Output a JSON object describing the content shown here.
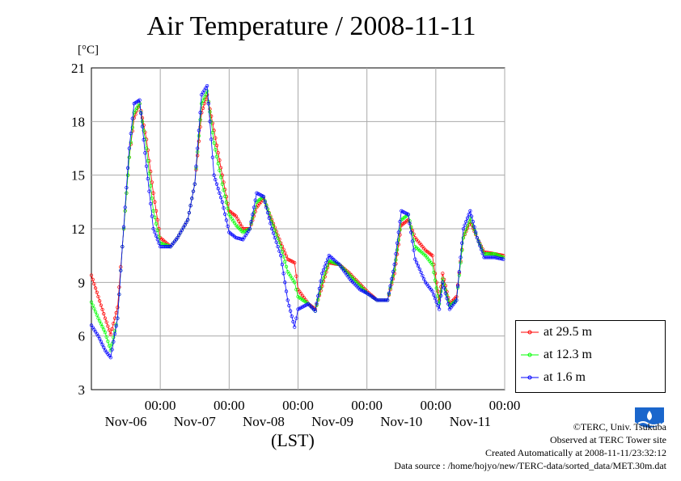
{
  "chart_data": {
    "type": "line",
    "title": "Air Temperature / 2008-11-11",
    "ylabel": "[°C]",
    "xlabel": "(LST)",
    "ylim": [
      3,
      21
    ],
    "yticks": [
      3,
      6,
      9,
      12,
      15,
      18,
      21
    ],
    "x_unit": "day (0 = Nov-06 00:00)",
    "xlim": [
      -1.0,
      5.0
    ],
    "xticks": [
      {
        "x": 0,
        "time": "00:00",
        "date": "Nov-06"
      },
      {
        "x": 1,
        "time": "00:00",
        "date": "Nov-07"
      },
      {
        "x": 2,
        "time": "00:00",
        "date": "Nov-08"
      },
      {
        "x": 3,
        "time": "00:00",
        "date": "Nov-09"
      },
      {
        "x": 4,
        "time": "00:00",
        "date": "Nov-10"
      },
      {
        "x": 5,
        "time": "00:00",
        "date": "Nov-11"
      }
    ],
    "grid": true,
    "legend_position": "right-bottom",
    "series": [
      {
        "name": "at 29.5 m",
        "color": "#ff0000",
        "points": [
          [
            -1.0,
            9.4
          ],
          [
            -0.9,
            8.2
          ],
          [
            -0.8,
            7.0
          ],
          [
            -0.72,
            6.1
          ],
          [
            -0.62,
            7.6
          ],
          [
            -0.55,
            11.0
          ],
          [
            -0.45,
            16.0
          ],
          [
            -0.38,
            18.2
          ],
          [
            -0.3,
            19.0
          ],
          [
            -0.2,
            17.0
          ],
          [
            -0.1,
            14.0
          ],
          [
            0.0,
            11.5
          ],
          [
            0.15,
            11.0
          ],
          [
            0.25,
            11.5
          ],
          [
            0.4,
            12.5
          ],
          [
            0.5,
            14.5
          ],
          [
            0.6,
            18.5
          ],
          [
            0.68,
            19.5
          ],
          [
            0.78,
            17.5
          ],
          [
            0.9,
            15.0
          ],
          [
            1.0,
            13.0
          ],
          [
            1.1,
            12.7
          ],
          [
            1.2,
            12.0
          ],
          [
            1.3,
            12.0
          ],
          [
            1.4,
            13.2
          ],
          [
            1.5,
            13.7
          ],
          [
            1.62,
            12.5
          ],
          [
            1.75,
            11.2
          ],
          [
            1.85,
            10.3
          ],
          [
            1.95,
            10.1
          ],
          [
            2.0,
            8.6
          ],
          [
            2.15,
            7.8
          ],
          [
            2.25,
            7.5
          ],
          [
            2.35,
            8.8
          ],
          [
            2.45,
            10.1
          ],
          [
            2.6,
            10.0
          ],
          [
            2.75,
            9.5
          ],
          [
            2.9,
            8.9
          ],
          [
            3.0,
            8.5
          ],
          [
            3.15,
            8.0
          ],
          [
            3.3,
            8.0
          ],
          [
            3.4,
            9.5
          ],
          [
            3.5,
            12.2
          ],
          [
            3.6,
            12.5
          ],
          [
            3.7,
            11.5
          ],
          [
            3.85,
            10.8
          ],
          [
            3.95,
            10.5
          ],
          [
            4.05,
            8.0
          ],
          [
            4.1,
            9.5
          ],
          [
            4.2,
            7.8
          ],
          [
            4.3,
            8.2
          ],
          [
            4.4,
            11.5
          ],
          [
            4.5,
            12.4
          ],
          [
            4.6,
            11.5
          ],
          [
            4.7,
            10.7
          ],
          [
            4.85,
            10.6
          ],
          [
            4.98,
            10.5
          ]
        ]
      },
      {
        "name": "at 12.3 m",
        "color": "#00ff00",
        "points": [
          [
            -1.0,
            7.9
          ],
          [
            -0.9,
            7.0
          ],
          [
            -0.8,
            6.2
          ],
          [
            -0.72,
            5.2
          ],
          [
            -0.62,
            7.0
          ],
          [
            -0.55,
            11.0
          ],
          [
            -0.45,
            16.0
          ],
          [
            -0.38,
            18.5
          ],
          [
            -0.3,
            19.0
          ],
          [
            -0.2,
            16.5
          ],
          [
            -0.1,
            13.0
          ],
          [
            0.0,
            11.2
          ],
          [
            0.15,
            11.0
          ],
          [
            0.25,
            11.5
          ],
          [
            0.4,
            12.5
          ],
          [
            0.5,
            14.5
          ],
          [
            0.6,
            19.0
          ],
          [
            0.68,
            19.7
          ],
          [
            0.78,
            16.8
          ],
          [
            0.9,
            14.5
          ],
          [
            1.0,
            12.8
          ],
          [
            1.1,
            12.2
          ],
          [
            1.2,
            11.8
          ],
          [
            1.3,
            12.0
          ],
          [
            1.4,
            13.5
          ],
          [
            1.5,
            13.8
          ],
          [
            1.62,
            12.4
          ],
          [
            1.75,
            11.0
          ],
          [
            1.85,
            9.6
          ],
          [
            1.95,
            9.0
          ],
          [
            2.0,
            8.2
          ],
          [
            2.15,
            7.8
          ],
          [
            2.25,
            7.4
          ],
          [
            2.35,
            9.0
          ],
          [
            2.45,
            10.2
          ],
          [
            2.6,
            10.0
          ],
          [
            2.75,
            9.4
          ],
          [
            2.9,
            8.8
          ],
          [
            3.0,
            8.4
          ],
          [
            3.15,
            8.0
          ],
          [
            3.3,
            8.0
          ],
          [
            3.4,
            9.7
          ],
          [
            3.5,
            12.5
          ],
          [
            3.6,
            12.8
          ],
          [
            3.7,
            11.0
          ],
          [
            3.85,
            10.5
          ],
          [
            3.95,
            10.0
          ],
          [
            4.05,
            7.8
          ],
          [
            4.1,
            9.2
          ],
          [
            4.2,
            7.7
          ],
          [
            4.3,
            8.0
          ],
          [
            4.4,
            11.5
          ],
          [
            4.5,
            12.6
          ],
          [
            4.6,
            11.5
          ],
          [
            4.7,
            10.6
          ],
          [
            4.85,
            10.6
          ],
          [
            4.98,
            10.4
          ]
        ]
      },
      {
        "name": "at 1.6 m",
        "color": "#0000ff",
        "points": [
          [
            -1.0,
            6.6
          ],
          [
            -0.9,
            6.0
          ],
          [
            -0.8,
            5.2
          ],
          [
            -0.72,
            4.8
          ],
          [
            -0.62,
            7.0
          ],
          [
            -0.55,
            11.0
          ],
          [
            -0.45,
            16.5
          ],
          [
            -0.38,
            19.0
          ],
          [
            -0.3,
            19.2
          ],
          [
            -0.2,
            15.5
          ],
          [
            -0.1,
            12.0
          ],
          [
            0.0,
            11.0
          ],
          [
            0.15,
            11.0
          ],
          [
            0.25,
            11.5
          ],
          [
            0.4,
            12.5
          ],
          [
            0.5,
            14.5
          ],
          [
            0.6,
            19.5
          ],
          [
            0.68,
            20.0
          ],
          [
            0.78,
            15.0
          ],
          [
            0.9,
            13.5
          ],
          [
            1.0,
            11.8
          ],
          [
            1.1,
            11.5
          ],
          [
            1.2,
            11.4
          ],
          [
            1.3,
            12.0
          ],
          [
            1.4,
            14.0
          ],
          [
            1.5,
            13.8
          ],
          [
            1.62,
            12.0
          ],
          [
            1.75,
            10.5
          ],
          [
            1.85,
            8.0
          ],
          [
            1.95,
            6.5
          ],
          [
            2.0,
            7.5
          ],
          [
            2.15,
            7.8
          ],
          [
            2.25,
            7.4
          ],
          [
            2.35,
            9.5
          ],
          [
            2.45,
            10.5
          ],
          [
            2.6,
            10.0
          ],
          [
            2.75,
            9.2
          ],
          [
            2.9,
            8.6
          ],
          [
            3.0,
            8.4
          ],
          [
            3.15,
            8.0
          ],
          [
            3.3,
            8.0
          ],
          [
            3.4,
            10.0
          ],
          [
            3.5,
            13.0
          ],
          [
            3.6,
            12.8
          ],
          [
            3.7,
            10.3
          ],
          [
            3.85,
            9.0
          ],
          [
            3.95,
            8.5
          ],
          [
            4.05,
            7.5
          ],
          [
            4.1,
            9.0
          ],
          [
            4.2,
            7.5
          ],
          [
            4.3,
            8.0
          ],
          [
            4.4,
            12.0
          ],
          [
            4.5,
            13.0
          ],
          [
            4.6,
            11.5
          ],
          [
            4.7,
            10.4
          ],
          [
            4.85,
            10.4
          ],
          [
            4.98,
            10.3
          ]
        ]
      }
    ]
  },
  "credits": {
    "copyright": "©TERC, Univ. Tsukuba",
    "observed": "Observed at TERC Tower site",
    "created": "Created Automatically at 2008-11-11/23:32:12",
    "source": "Data source : /home/hojyo/new/TERC-data/sorted_data/MET.30m.dat"
  }
}
